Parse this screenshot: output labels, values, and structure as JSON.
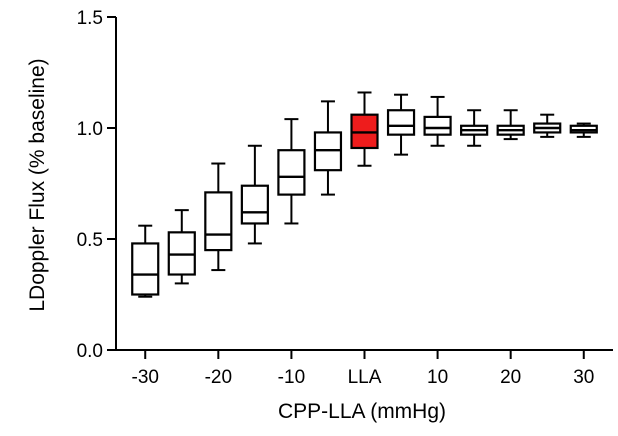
{
  "chart_data": {
    "type": "box",
    "xlabel": "CPP-LLA (mmHg)",
    "ylabel": "LDoppler Flux (% baseline)",
    "ylim": [
      0.0,
      1.5
    ],
    "yticks": [
      0.0,
      0.5,
      1.0,
      1.5
    ],
    "ytick_labels": [
      "0.0",
      "0.5",
      "1.0",
      "1.5"
    ],
    "x_tick_labels": [
      {
        "x": -30,
        "label": "-30"
      },
      {
        "x": -20,
        "label": "-20"
      },
      {
        "x": -10,
        "label": "-10"
      },
      {
        "x": 0,
        "label": "LLA"
      },
      {
        "x": 10,
        "label": "10"
      },
      {
        "x": 20,
        "label": "20"
      },
      {
        "x": 30,
        "label": "30"
      }
    ],
    "highlight_color": "#ee1c1c",
    "box_color": "#ffffff",
    "boxes": [
      {
        "x": -30,
        "min": 0.24,
        "q1": 0.25,
        "median": 0.34,
        "q3": 0.48,
        "max": 0.56
      },
      {
        "x": -25,
        "min": 0.3,
        "q1": 0.34,
        "median": 0.43,
        "q3": 0.53,
        "max": 0.63
      },
      {
        "x": -20,
        "min": 0.36,
        "q1": 0.45,
        "median": 0.52,
        "q3": 0.71,
        "max": 0.84
      },
      {
        "x": -15,
        "min": 0.48,
        "q1": 0.57,
        "median": 0.62,
        "q3": 0.74,
        "max": 0.92
      },
      {
        "x": -10,
        "min": 0.57,
        "q1": 0.7,
        "median": 0.78,
        "q3": 0.9,
        "max": 1.04
      },
      {
        "x": -5,
        "min": 0.7,
        "q1": 0.81,
        "median": 0.9,
        "q3": 0.98,
        "max": 1.12
      },
      {
        "x": 0,
        "min": 0.83,
        "q1": 0.91,
        "median": 0.98,
        "q3": 1.06,
        "max": 1.16,
        "highlight": true
      },
      {
        "x": 5,
        "min": 0.88,
        "q1": 0.97,
        "median": 1.01,
        "q3": 1.08,
        "max": 1.15
      },
      {
        "x": 10,
        "min": 0.92,
        "q1": 0.97,
        "median": 1.0,
        "q3": 1.05,
        "max": 1.14
      },
      {
        "x": 15,
        "min": 0.92,
        "q1": 0.97,
        "median": 0.99,
        "q3": 1.01,
        "max": 1.08
      },
      {
        "x": 20,
        "min": 0.95,
        "q1": 0.97,
        "median": 0.99,
        "q3": 1.01,
        "max": 1.08
      },
      {
        "x": 25,
        "min": 0.96,
        "q1": 0.98,
        "median": 1.0,
        "q3": 1.02,
        "max": 1.06
      },
      {
        "x": 30,
        "min": 0.96,
        "q1": 0.98,
        "median": 0.99,
        "q3": 1.01,
        "max": 1.02
      }
    ]
  }
}
